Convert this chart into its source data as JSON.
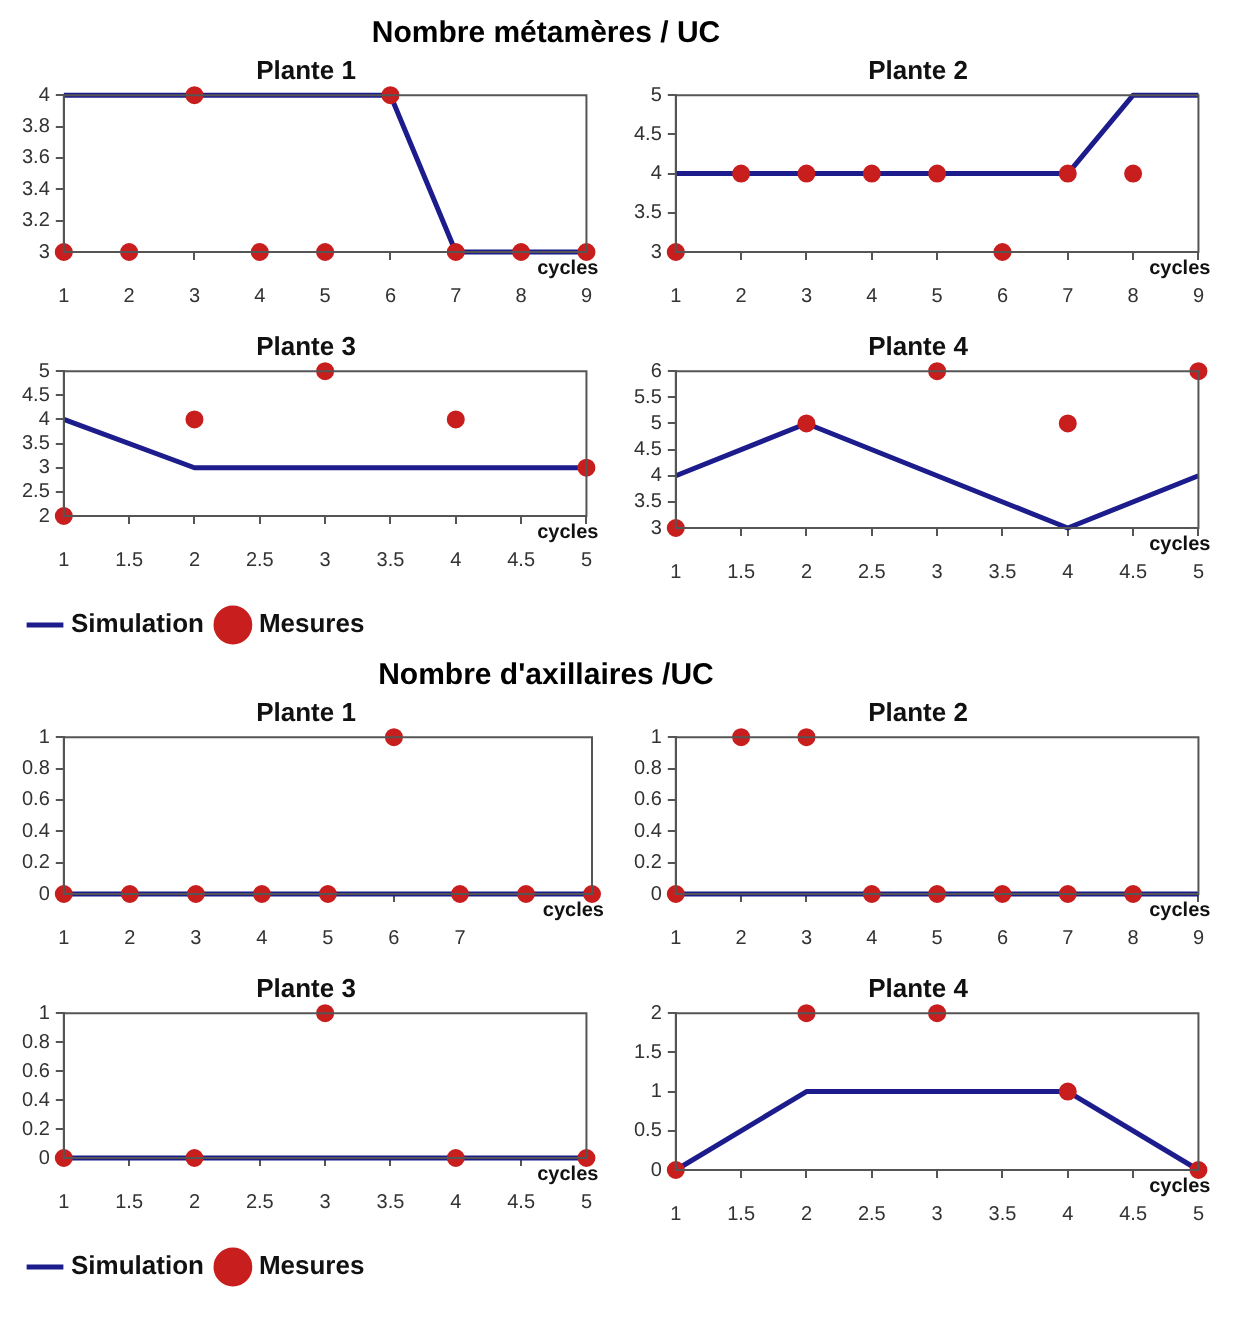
{
  "chart_data": [
    {
      "type": "line",
      "title": "Plante 1",
      "annotations": [
        "Nombre métamères / UC"
      ],
      "xlabel": "cycles",
      "x": [
        1,
        2,
        3,
        4,
        5,
        6,
        7,
        8,
        9
      ],
      "xlim": [
        1,
        9
      ],
      "xticks": [
        1,
        2,
        3,
        4,
        5,
        6,
        7,
        8,
        9
      ],
      "ylim": [
        3,
        4
      ],
      "yticks": [
        3,
        3.2,
        3.4,
        3.6,
        3.8,
        4
      ],
      "series": [
        {
          "color": "#1c1c8c",
          "values": [
            4,
            4,
            4,
            4,
            4,
            4,
            3,
            3,
            3
          ]
        },
        {
          "type": "scatter",
          "marker": "circle",
          "color": "#c81e1e",
          "values": [
            3,
            3,
            4,
            3,
            3,
            4,
            3,
            3,
            3
          ]
        }
      ]
    },
    {
      "type": "line",
      "title": "Plante 2",
      "xlabel": "cycles",
      "x": [
        1,
        2,
        3,
        4,
        5,
        6,
        7,
        8,
        9
      ],
      "xlim": [
        1,
        9
      ],
      "xticks": [
        1,
        2,
        3,
        4,
        5,
        6,
        7,
        8,
        9
      ],
      "ylim": [
        3,
        5
      ],
      "yticks": [
        3,
        3.5,
        4,
        4.5,
        5
      ],
      "series": [
        {
          "color": "#1c1c8c",
          "values": [
            4,
            4,
            4,
            4,
            4,
            4,
            4,
            5,
            5
          ]
        },
        {
          "type": "scatter",
          "marker": "circle",
          "color": "#c81e1e",
          "values": [
            3,
            4,
            4,
            4,
            4,
            3,
            4,
            4,
            null
          ]
        }
      ]
    },
    {
      "type": "line",
      "title": "Plante 3",
      "xlabel": "cycles",
      "legend": "bottom",
      "x": [
        1,
        2,
        3,
        4,
        5
      ],
      "xlim": [
        1,
        5
      ],
      "xticks": [
        1,
        1.5,
        2,
        2.5,
        3,
        3.5,
        4,
        4.5,
        5
      ],
      "ylim": [
        2,
        5
      ],
      "yticks": [
        2,
        2.5,
        3,
        3.5,
        4,
        4.5,
        5
      ],
      "series": [
        {
          "name": "Simulation",
          "color": "#1c1c8c",
          "values": [
            4,
            3,
            3,
            3,
            3
          ]
        },
        {
          "name": "Mesures",
          "type": "scatter",
          "marker": "circle",
          "color": "#c81e1e",
          "values": [
            2,
            4,
            5,
            4,
            3
          ]
        }
      ]
    },
    {
      "type": "line",
      "title": "Plante 4",
      "xlabel": "cycles",
      "x": [
        1,
        2,
        3,
        4,
        5
      ],
      "xlim": [
        1,
        5
      ],
      "xticks": [
        1,
        1.5,
        2,
        2.5,
        3,
        3.5,
        4,
        4.5,
        5
      ],
      "ylim": [
        3,
        6
      ],
      "yticks": [
        3,
        3.5,
        4,
        4.5,
        5,
        5.5,
        6
      ],
      "series": [
        {
          "color": "#1c1c8c",
          "values": [
            4,
            5,
            4,
            3,
            4
          ]
        },
        {
          "type": "scatter",
          "marker": "circle",
          "color": "#c81e1e",
          "values": [
            3,
            5,
            6,
            5,
            6
          ]
        }
      ]
    },
    {
      "type": "line",
      "title": "Plante 1",
      "annotations": [
        "Nombre d'axillaires /UC"
      ],
      "xlabel": "cycles",
      "x": [
        1,
        2,
        3,
        4,
        5,
        6,
        7,
        8,
        9
      ],
      "xlim": [
        1,
        9
      ],
      "xticks": [
        1,
        2,
        3,
        4,
        5,
        6,
        7,
        {
          "value": 8,
          "label": null
        },
        {
          "value": 9,
          "label": null
        }
      ],
      "ylim": [
        0,
        1
      ],
      "yticks": [
        0,
        0.2,
        0.4,
        0.6,
        0.8,
        1
      ],
      "series": [
        {
          "color": "#1c1c8c",
          "values": [
            0,
            0,
            0,
            0,
            0,
            0,
            0,
            0,
            0
          ]
        },
        {
          "type": "scatter",
          "marker": "circle",
          "color": "#c81e1e",
          "values": [
            0,
            0,
            0,
            0,
            0,
            1,
            0,
            0,
            0
          ]
        }
      ]
    },
    {
      "type": "line",
      "title": "Plante 2",
      "xlabel": "cycles",
      "x": [
        1,
        2,
        3,
        4,
        5,
        6,
        7,
        8,
        9
      ],
      "xlim": [
        1,
        9
      ],
      "xticks": [
        1,
        2,
        3,
        4,
        5,
        6,
        7,
        8,
        9
      ],
      "ylim": [
        0,
        1
      ],
      "yticks": [
        0,
        0.2,
        0.4,
        0.6,
        0.8,
        1
      ],
      "series": [
        {
          "color": "#1c1c8c",
          "values": [
            0,
            0,
            0,
            0,
            0,
            0,
            0,
            0,
            0
          ]
        },
        {
          "type": "scatter",
          "marker": "circle",
          "color": "#c81e1e",
          "values": [
            0,
            1,
            1,
            0,
            0,
            0,
            0,
            0,
            null
          ]
        }
      ]
    },
    {
      "type": "line",
      "title": "Plante 3",
      "xlabel": "cycles",
      "legend": "bottom",
      "x": [
        1,
        2,
        3,
        4,
        5
      ],
      "xlim": [
        1,
        5
      ],
      "xticks": [
        1,
        1.5,
        2,
        2.5,
        3,
        3.5,
        4,
        4.5,
        5
      ],
      "ylim": [
        0,
        1
      ],
      "yticks": [
        0,
        0.2,
        0.4,
        0.6,
        0.8,
        1
      ],
      "series": [
        {
          "name": "Simulation",
          "color": "#1c1c8c",
          "values": [
            0,
            0,
            0,
            0,
            0
          ]
        },
        {
          "name": "Mesures",
          "type": "scatter",
          "marker": "circle",
          "color": "#c81e1e",
          "values": [
            0,
            0,
            1,
            0,
            0
          ]
        }
      ]
    },
    {
      "type": "line",
      "title": "Plante 4",
      "xlabel": "cycles",
      "x": [
        1,
        2,
        3,
        4,
        5
      ],
      "xlim": [
        1,
        5
      ],
      "xticks": [
        1,
        1.5,
        2,
        2.5,
        3,
        3.5,
        4,
        4.5,
        5
      ],
      "ylim": [
        0,
        2
      ],
      "yticks": [
        0,
        0.5,
        1,
        1.5,
        2
      ],
      "series": [
        {
          "color": "#1c1c8c",
          "values": [
            0,
            1,
            1,
            1,
            0
          ]
        },
        {
          "type": "scatter",
          "marker": "circle",
          "color": "#c81e1e",
          "values": [
            0,
            2,
            2,
            1,
            0
          ]
        }
      ]
    }
  ]
}
